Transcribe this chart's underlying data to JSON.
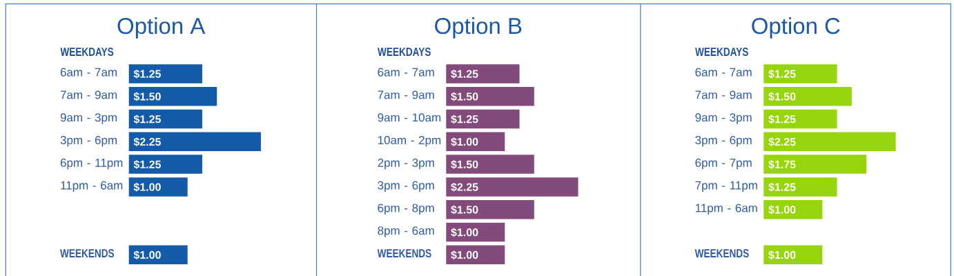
{
  "chart_data": [
    {
      "type": "bar",
      "orientation": "horizontal",
      "title": "Option A",
      "subtitle": "WEEKDAYS",
      "color": "#135ba8",
      "categories": [
        "6am - 7am",
        "7am - 9am",
        "9am - 3pm",
        "3pm - 6pm",
        "6pm - 11pm",
        "11pm - 6am",
        null,
        null,
        "**WEEKENDS**"
      ],
      "values": [
        1.25,
        1.5,
        1.25,
        2.25,
        1.25,
        1.0,
        null,
        null,
        1.0
      ],
      "value_labels": [
        "$1.25",
        "$1.50",
        "$1.25",
        "$2.25",
        "$1.25",
        "$1.00",
        null,
        null,
        "$1.00"
      ],
      "tick_labels": "y"
    },
    {
      "type": "bar",
      "orientation": "horizontal",
      "title": "Option B",
      "subtitle": "WEEKDAYS",
      "color": "#834b7b",
      "categories": [
        "6am - 7am",
        "7am - 9am",
        "9am - 10am",
        "10am - 2pm",
        "2pm - 3pm",
        "3pm - 6pm",
        "6pm - 8pm",
        "8pm - 6am",
        "**WEEKENDS**"
      ],
      "values": [
        1.25,
        1.5,
        1.25,
        1.0,
        1.5,
        2.25,
        1.5,
        1.0,
        1.0
      ],
      "value_labels": [
        "$1.25",
        "$1.50",
        "$1.25",
        "$1.00",
        "$1.50",
        "$2.25",
        "$1.50",
        "$1.00",
        "$1.00"
      ],
      "tick_labels": "y"
    },
    {
      "type": "bar",
      "orientation": "horizontal",
      "title": "Option C",
      "subtitle": "WEEKDAYS",
      "color": "#96d40b",
      "categories": [
        "6am - 7am",
        "7am - 9am",
        "9am - 3pm",
        "3pm - 6pm",
        "6pm - 7pm",
        "7pm - 11pm",
        "11pm - 6am",
        null,
        "**WEEKENDS**"
      ],
      "values": [
        1.25,
        1.5,
        1.25,
        2.25,
        1.75,
        1.25,
        1.0,
        null,
        1.0
      ],
      "value_labels": [
        "$1.25",
        "$1.50",
        "$1.25",
        "$2.25",
        "$1.75",
        "$1.25",
        "$1.00",
        null,
        "$1.00"
      ],
      "tick_labels": "y"
    }
  ]
}
